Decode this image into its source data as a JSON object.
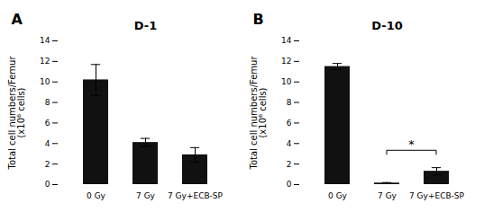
{
  "chart_data": [
    {
      "type": "bar",
      "title": "D-1",
      "annotations": [
        {
          "text": "A"
        }
      ],
      "categories": [
        "0 Gy",
        "7 Gy",
        "7 Gy+ECB-SP"
      ],
      "values": [
        10.2,
        4.1,
        2.9
      ],
      "errors": [
        1.5,
        0.4,
        0.7
      ],
      "color": "#111111",
      "ylabel": "Total cell numbers/Femur\n(x10⁶ cells)",
      "ylim": [
        0,
        14
      ],
      "yticks": [
        0,
        2,
        4,
        6,
        8,
        10,
        12,
        14
      ]
    },
    {
      "type": "bar",
      "title": "D-10",
      "annotations": [
        {
          "text": "B"
        },
        {
          "text": "*",
          "x1": "7 Gy",
          "x2": "7 Gy+ECB-SP",
          "y": 3.3
        }
      ],
      "categories": [
        "0 Gy",
        "7 Gy",
        "7 Gy+ECB-SP"
      ],
      "values": [
        11.5,
        0.15,
        1.3
      ],
      "errors": [
        0.3,
        0.05,
        0.35
      ],
      "color": "#111111",
      "ylabel": "Total cell numbers/Femur\n(x10⁶ cells)",
      "ylim": [
        0,
        14
      ],
      "yticks": [
        0,
        2,
        4,
        6,
        8,
        10,
        12,
        14
      ]
    }
  ]
}
